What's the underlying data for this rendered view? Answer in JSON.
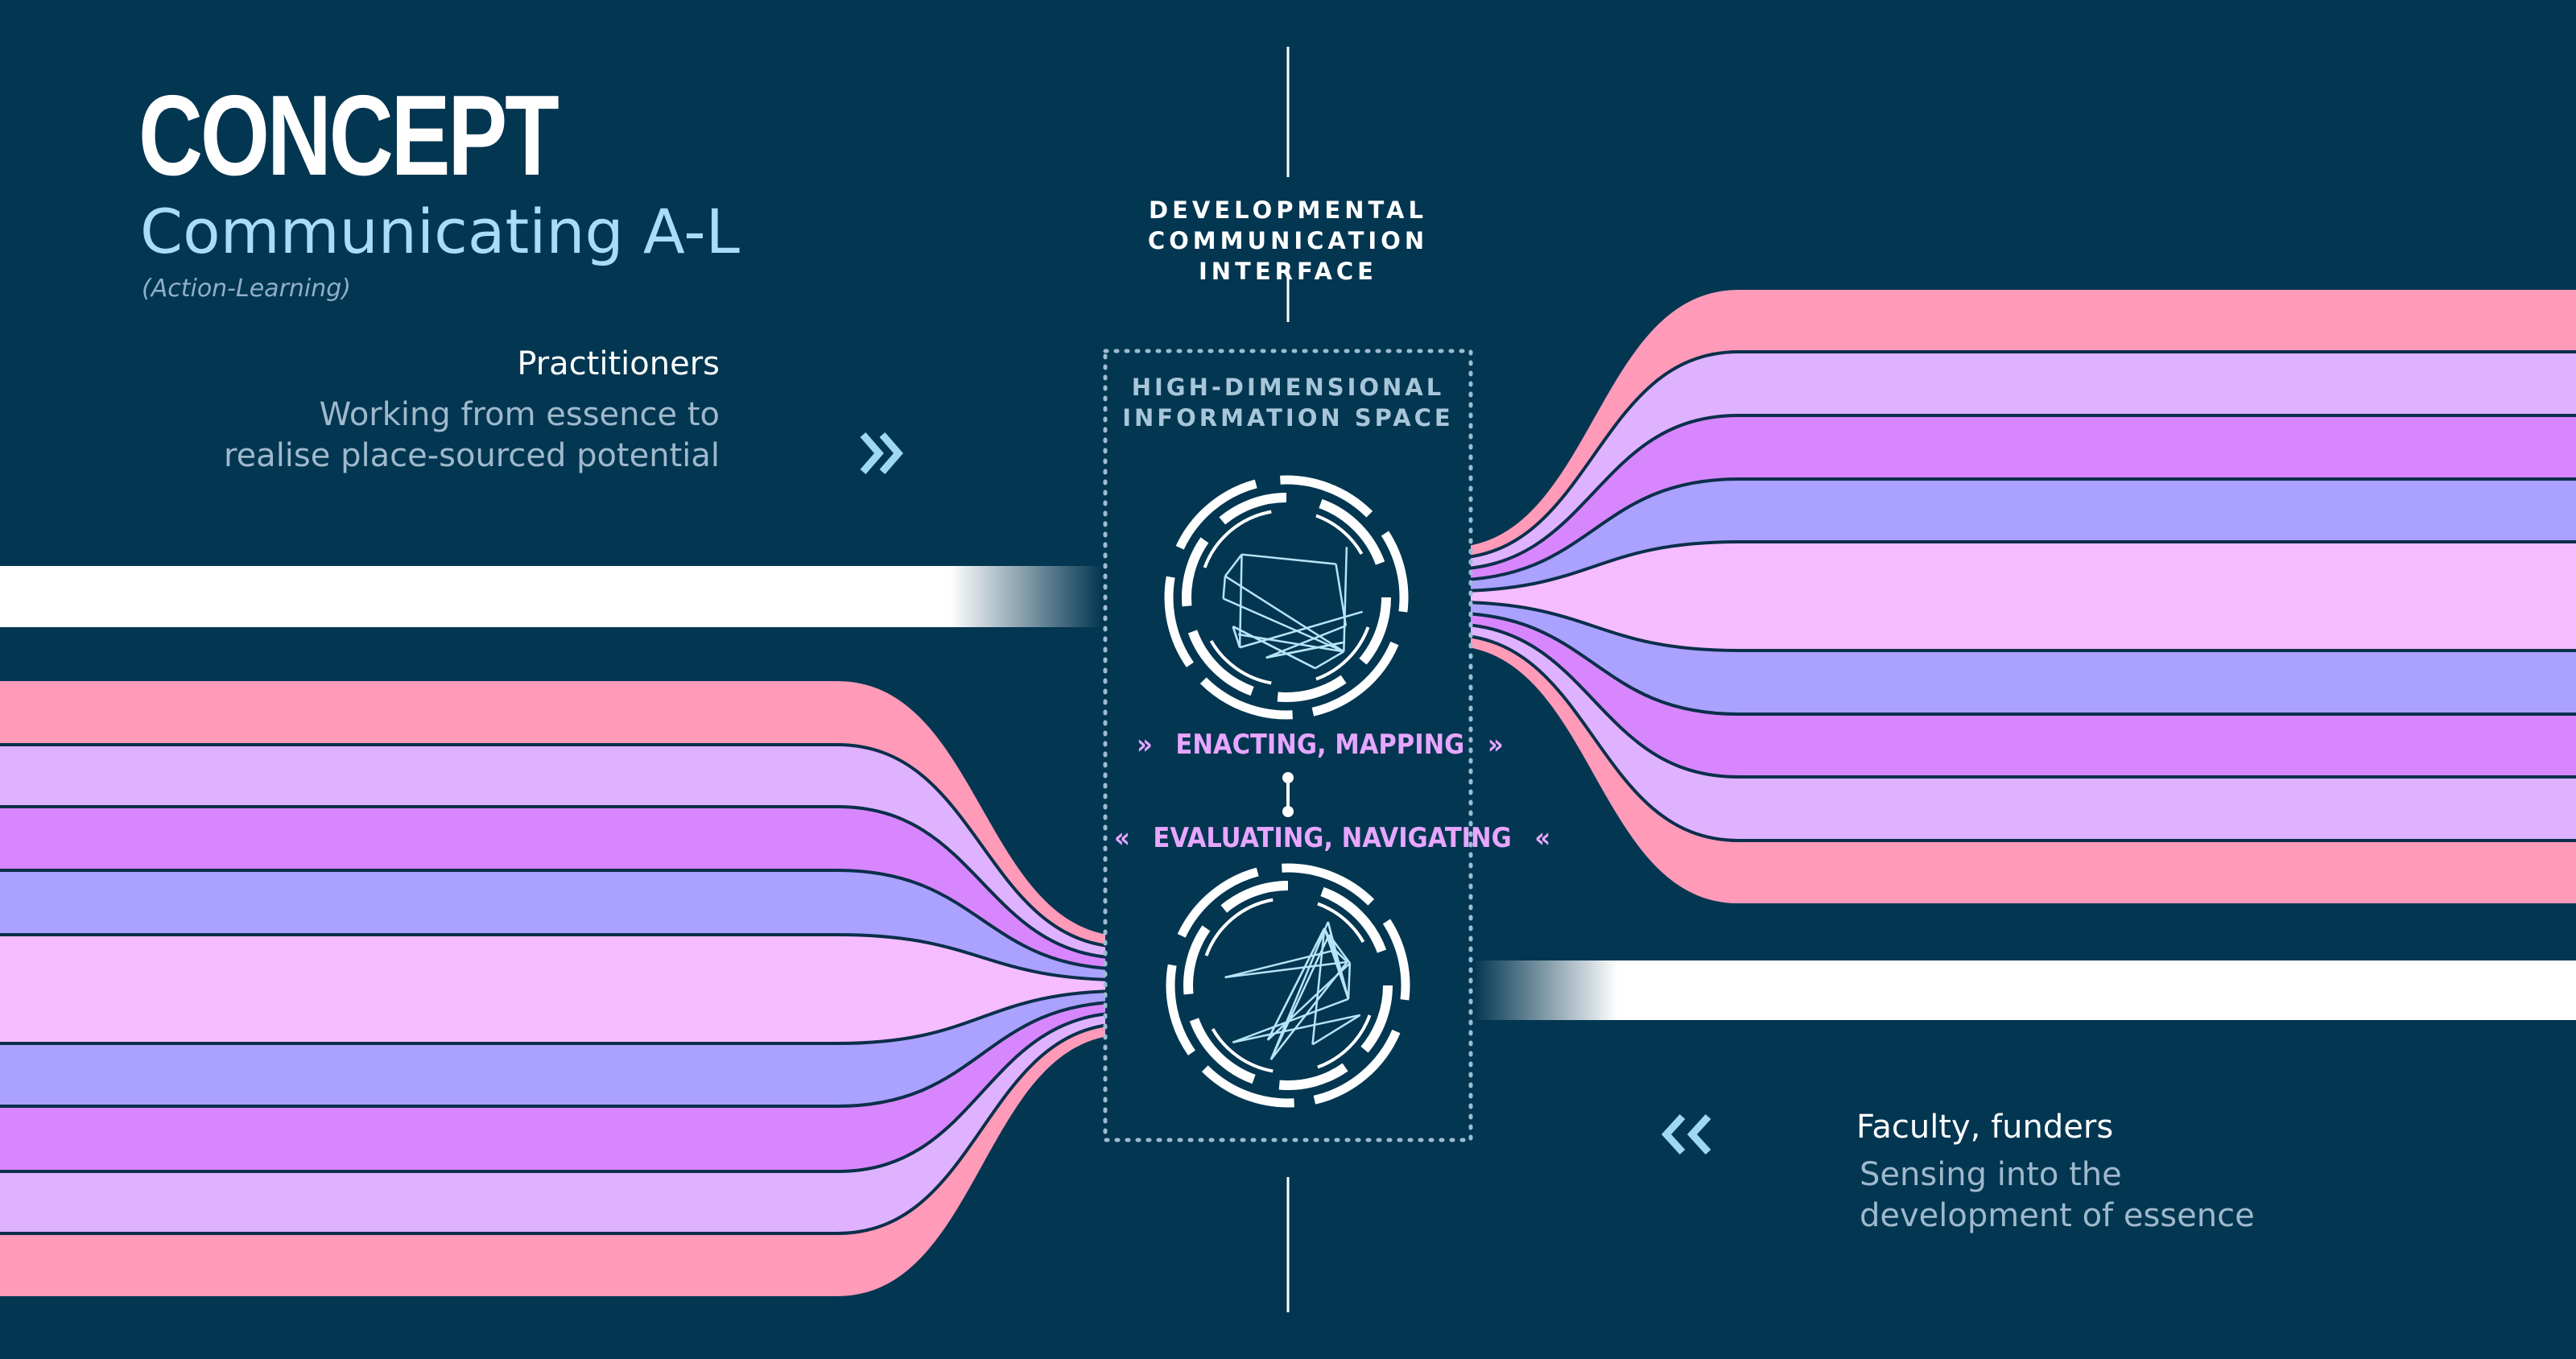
{
  "header": {
    "title": "CONCEPT",
    "subtitle": "Communicating A-L",
    "subnote": "(Action-Learning)"
  },
  "practitioners": {
    "title": "Practitioners",
    "description_lines": [
      "Working from essence to",
      "realise place-sourced potential"
    ]
  },
  "faculty": {
    "title": "Faculty, funders",
    "description_lines": [
      "Sensing into the",
      "development of essence"
    ]
  },
  "interface": {
    "heading_lines": [
      "DEVELOPMENTAL",
      "COMMUNICATION INTERFACE"
    ],
    "box_heading_lines": [
      "HIGH-DIMENSIONAL",
      "INFORMATION SPACE"
    ],
    "forward_label": "ENACTING, MAPPING",
    "backward_label": "EVALUATING, NAVIGATING",
    "forward_arrow": "»",
    "backward_arrow": "«"
  },
  "icons": {
    "practitioner_chevron": "double-chevron-right-icon",
    "faculty_chevron": "double-chevron-left-icon",
    "network_circle": "network-circle-icon"
  },
  "colors": {
    "background": "#033651",
    "band_colors": [
      "#ff9ab9",
      "#dfb2ff",
      "#d886fd",
      "#aba1ff",
      "#f5bcff",
      "#aba1ff",
      "#d886fd",
      "#dfb2ff",
      "#ff9ab9"
    ],
    "outline": "#0a2f4a",
    "accent_text": "#e7a6ff",
    "subtitle": "#a8dcf7",
    "chevron": "#9fd8f2",
    "white_bar": "#ffffff"
  }
}
